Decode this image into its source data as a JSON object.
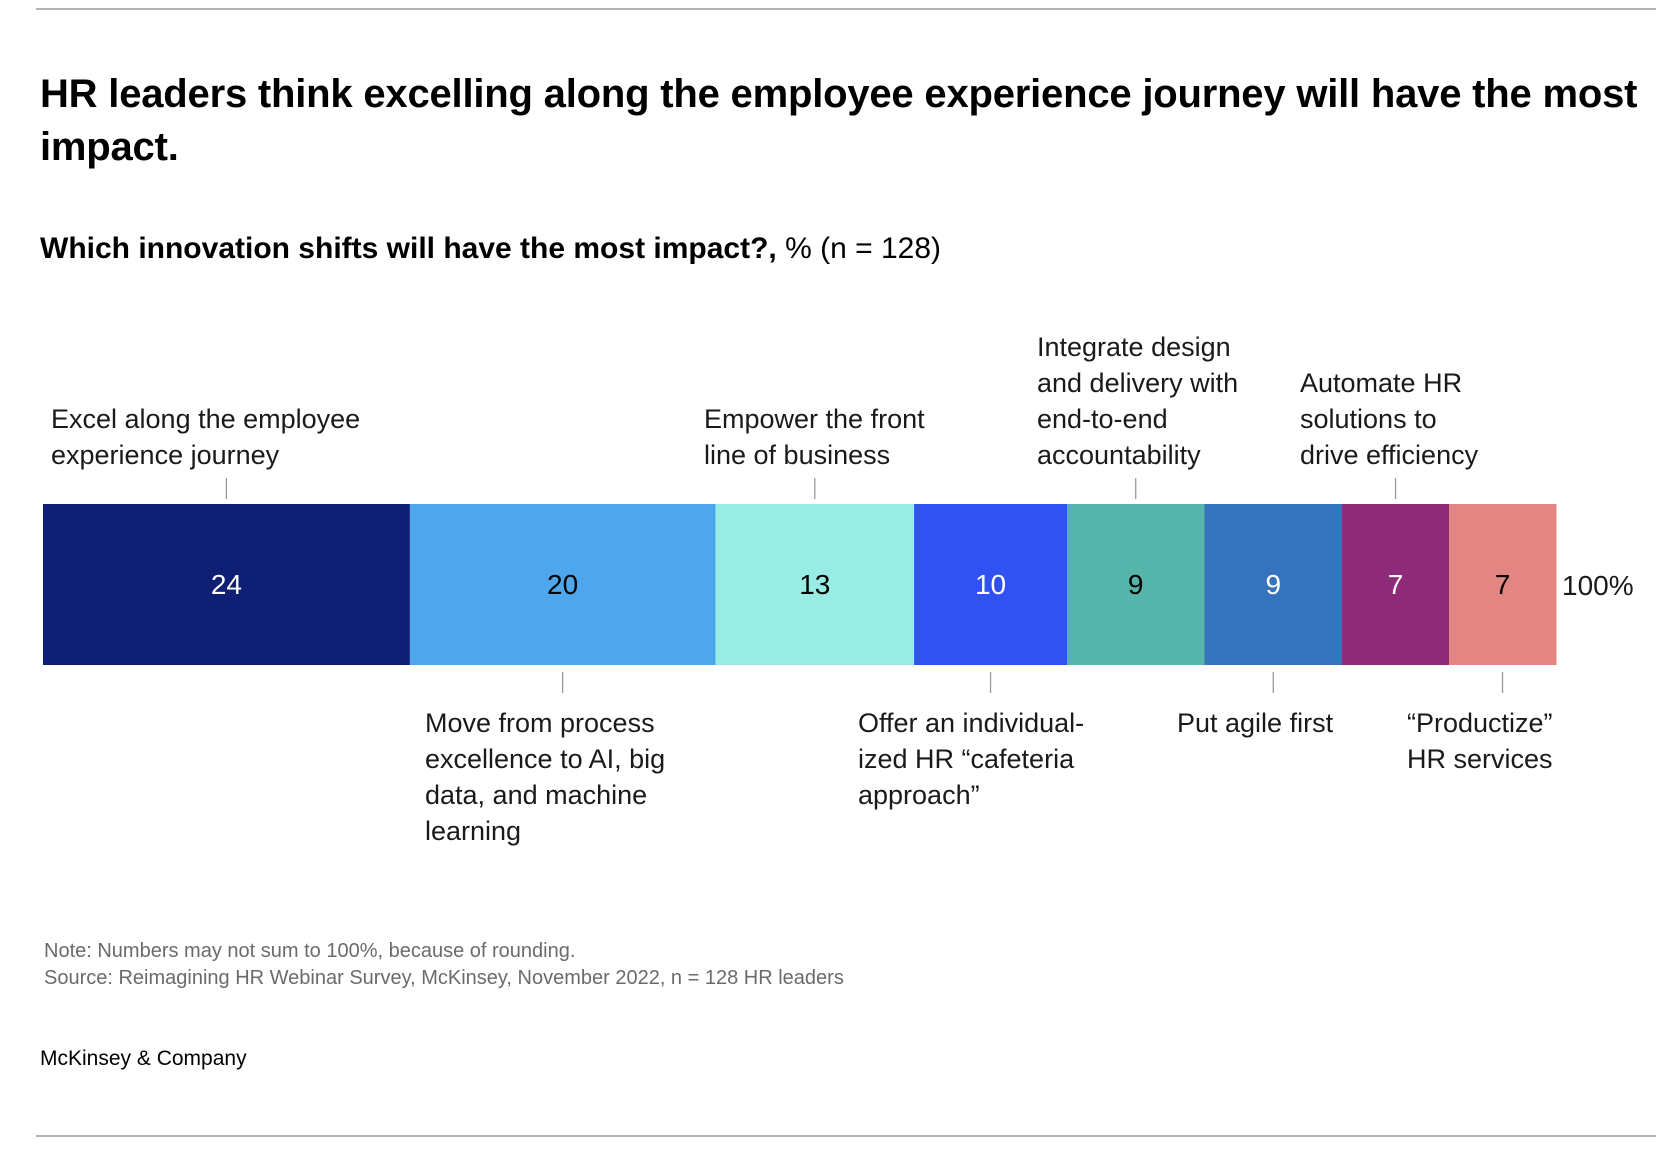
{
  "header": {
    "title": "HR leaders think excelling along the employee experience journey will have the most impact.",
    "subtitle_bold": "Which innovation shifts will have the most impact?,",
    "subtitle_regular": " % (n = 128)"
  },
  "chart_data": {
    "type": "bar",
    "orientation": "horizontal-stacked",
    "title": "Which innovation shifts will have the most impact?, % (n = 128)",
    "unit": "%",
    "total_label": "100%",
    "categories": [
      "Excel along the employee experience journey",
      "Move from process excellence to AI, big data, and machine learning",
      "Empower the front line of business",
      "Offer an individualized HR “cafeteria approach”",
      "Integrate design and delivery with end-to-end accountability",
      "Put agile first",
      "Automate HR solutions to drive efficiency",
      "“Productize” HR services"
    ],
    "values": [
      24,
      20,
      13,
      10,
      9,
      9,
      7,
      7
    ],
    "segments": [
      {
        "value": 24,
        "value_label": "24",
        "color": "#0f1f73",
        "text_color": "#ffffff",
        "label_side": "top",
        "label_lines": [
          "Excel along the employee",
          "experience journey"
        ]
      },
      {
        "value": 20,
        "value_label": "20",
        "color": "#4ea6ec",
        "text_color": "#000000",
        "label_side": "bottom",
        "label_lines": [
          "Move from process",
          "excellence to AI, big",
          "data, and machine",
          "learning"
        ]
      },
      {
        "value": 13,
        "value_label": "13",
        "color": "#97ece3",
        "text_color": "#000000",
        "label_side": "top",
        "label_lines": [
          "Empower the front",
          "line of business"
        ]
      },
      {
        "value": 10,
        "value_label": "10",
        "color": "#3152f3",
        "text_color": "#ffffff",
        "label_side": "bottom",
        "label_lines": [
          "Offer an individual-",
          "ized HR “cafeteria",
          "approach”"
        ]
      },
      {
        "value": 9,
        "value_label": "9",
        "color": "#56b5ab",
        "text_color": "#000000",
        "label_side": "top",
        "label_lines": [
          "Integrate design",
          "and delivery with",
          "end-to-end",
          "accountability"
        ]
      },
      {
        "value": 9,
        "value_label": "9",
        "color": "#3574bc",
        "text_color": "#ffffff",
        "label_side": "bottom",
        "label_lines": [
          "Put agile first"
        ]
      },
      {
        "value": 7,
        "value_label": "7",
        "color": "#8d2b78",
        "text_color": "#ffffff",
        "label_side": "top",
        "label_lines": [
          "Automate HR",
          "solutions to",
          "drive efficiency"
        ]
      },
      {
        "value": 7,
        "value_label": "7",
        "color": "#e38682",
        "text_color": "#000000",
        "label_side": "bottom",
        "label_lines": [
          "“Productize”",
          "HR services"
        ]
      }
    ],
    "xlim": [
      0,
      99
    ],
    "grid": false,
    "legend": "none (direct labels)"
  },
  "notes": {
    "note": "Note: Numbers may not sum to 100%, because of rounding.",
    "source": "Source: Reimagining HR Webinar Survey, McKinsey, November 2022, n = 128 HR leaders"
  },
  "footer": {
    "brand": "McKinsey & Company"
  },
  "colors": {
    "rule": "#b3b3b3",
    "note_text": "#6b6b6b",
    "leader_line": "#9a9a9a"
  }
}
